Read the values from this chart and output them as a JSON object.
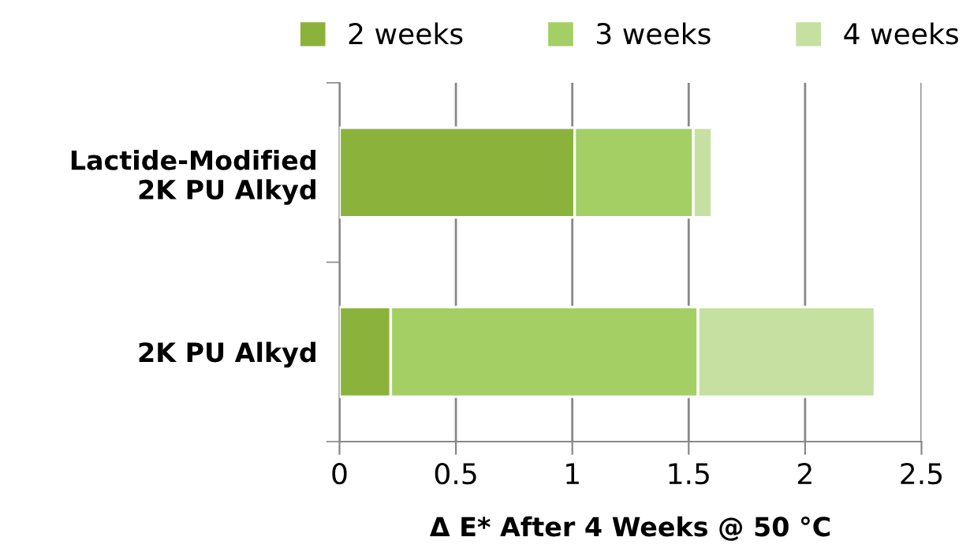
{
  "chart_data": {
    "type": "bar",
    "orientation": "horizontal",
    "stacked": true,
    "xlabel": "Δ E* After 4 Weeks @ 50 °C",
    "categories": [
      "Lactide-Modified\n2K PU Alkyd",
      "2K PU Alkyd"
    ],
    "series": [
      {
        "name": "2 weeks",
        "color": "#8bb33c",
        "values": [
          1.01,
          0.22
        ]
      },
      {
        "name": "3 weeks",
        "color": "#a3cf65",
        "values": [
          0.51,
          1.32
        ]
      },
      {
        "name": "4 weeks",
        "color": "#c5e0a0",
        "values": [
          0.08,
          0.76
        ]
      }
    ],
    "xlim": [
      0,
      2.5
    ],
    "xticks": [
      0,
      0.5,
      1,
      1.5,
      2,
      2.5
    ],
    "grid": "x",
    "legend": "top"
  }
}
